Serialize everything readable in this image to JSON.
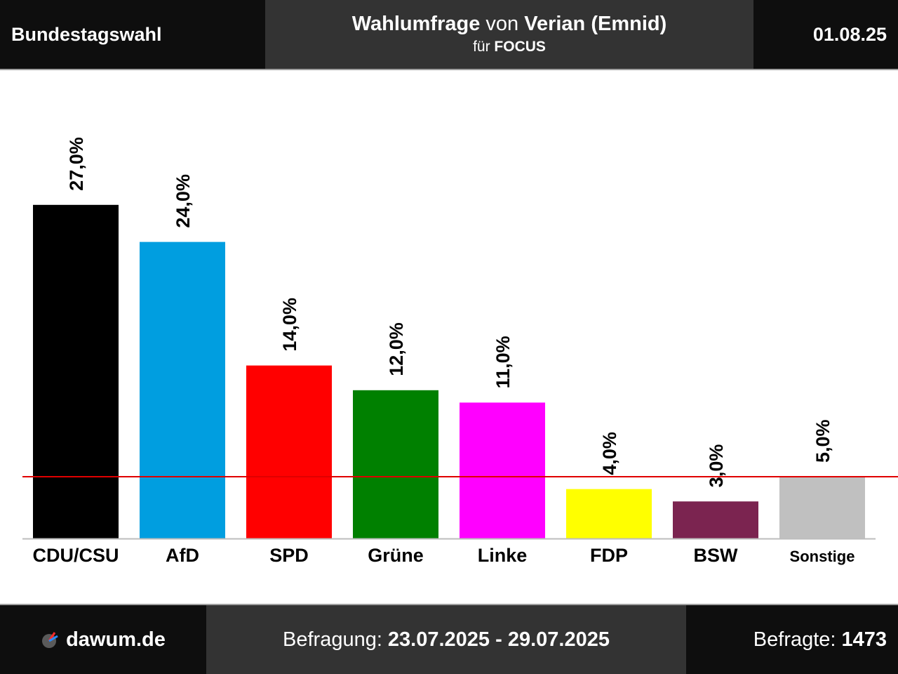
{
  "header": {
    "left": "Bundestagswahl",
    "title_bold1": "Wahlumfrage",
    "title_plain": "von",
    "title_bold2": "Verian (Emnid)",
    "subtitle_plain": "für",
    "subtitle_bold": "FOCUS",
    "date": "01.08.25"
  },
  "footer": {
    "brand": "dawum.de",
    "period_label": "Befragung:",
    "period_value": "23.07.2025 - 29.07.2025",
    "respondents_label": "Befragte:",
    "respondents_value": "1473"
  },
  "chart_data": {
    "type": "bar",
    "categories": [
      "CDU/CSU",
      "AfD",
      "SPD",
      "Grüne",
      "Linke",
      "FDP",
      "BSW",
      "Sonstige"
    ],
    "values": [
      27.0,
      24.0,
      14.0,
      12.0,
      11.0,
      4.0,
      3.0,
      5.0
    ],
    "value_labels": [
      "27,0%",
      "24,0%",
      "14,0%",
      "12,0%",
      "11,0%",
      "4,0%",
      "3,0%",
      "5,0%"
    ],
    "colors": [
      "#000000",
      "#009ee0",
      "#ff0000",
      "#008000",
      "#ff00ff",
      "#ffff00",
      "#7b2450",
      "#c0c0c0"
    ],
    "threshold": 5.0,
    "threshold_color": "#e00000",
    "ylim": [
      0,
      30
    ],
    "grid": false
  }
}
